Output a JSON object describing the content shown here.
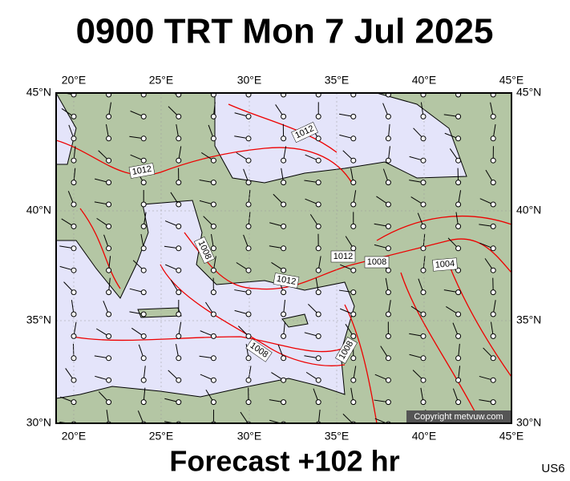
{
  "header": {
    "title": "0900 TRT Mon 7 Jul 2025"
  },
  "map": {
    "lon_labels": [
      "20°E",
      "25°E",
      "30°E",
      "35°E",
      "40°E",
      "45°E"
    ],
    "lat_labels": [
      "45°N",
      "40°N",
      "35°N",
      "30°N"
    ],
    "isobar_labels": [
      "1012",
      "1012",
      "1008",
      "1012",
      "1008",
      "1004",
      "1012",
      "1008",
      "1008"
    ],
    "copyright": "Copyright metvuw.com"
  },
  "footer": {
    "forecast": "Forecast +102 hr",
    "code": "US6"
  }
}
